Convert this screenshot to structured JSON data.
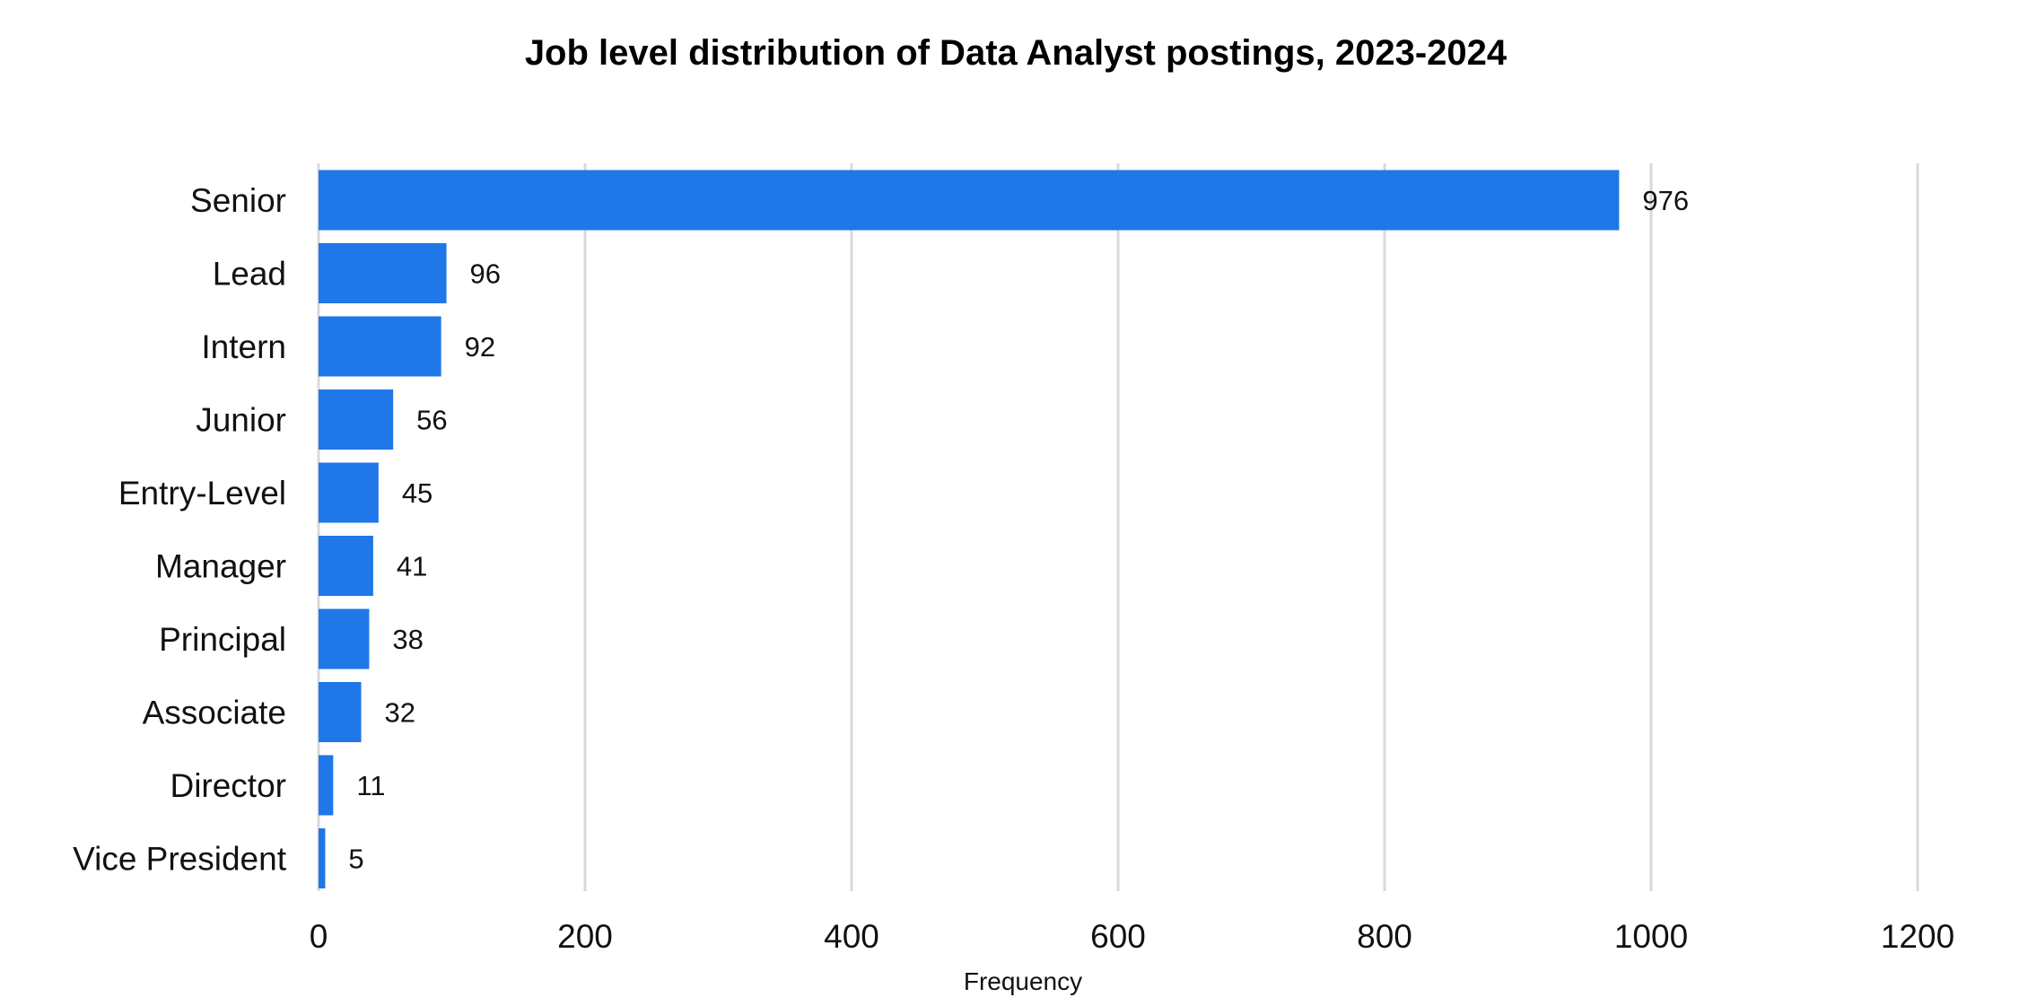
{
  "chart_data": {
    "type": "bar",
    "orientation": "horizontal",
    "title": "Job level distribution of Data Analyst postings, 2023-2024",
    "xlabel": "Frequency",
    "ylabel": "",
    "categories": [
      "Senior",
      "Lead",
      "Intern",
      "Junior",
      "Entry-Level",
      "Manager",
      "Principal",
      "Associate",
      "Director",
      "Vice President"
    ],
    "values": [
      976,
      96,
      92,
      56,
      45,
      41,
      38,
      32,
      11,
      5
    ],
    "data_labels": [
      "976",
      "96",
      "92",
      "56",
      "45",
      "41",
      "38",
      "32",
      "11",
      "5"
    ],
    "xlim": [
      0,
      1200
    ],
    "xticks": [
      0,
      200,
      400,
      600,
      800,
      1000,
      1200
    ],
    "xtick_labels": [
      "0",
      "200",
      "400",
      "600",
      "800",
      "1000",
      "1200"
    ],
    "grid": "vertical",
    "legend": "none",
    "colors": {
      "bar": "#1f77e8",
      "grid": "#d9d9d9",
      "text": "#111111"
    }
  }
}
